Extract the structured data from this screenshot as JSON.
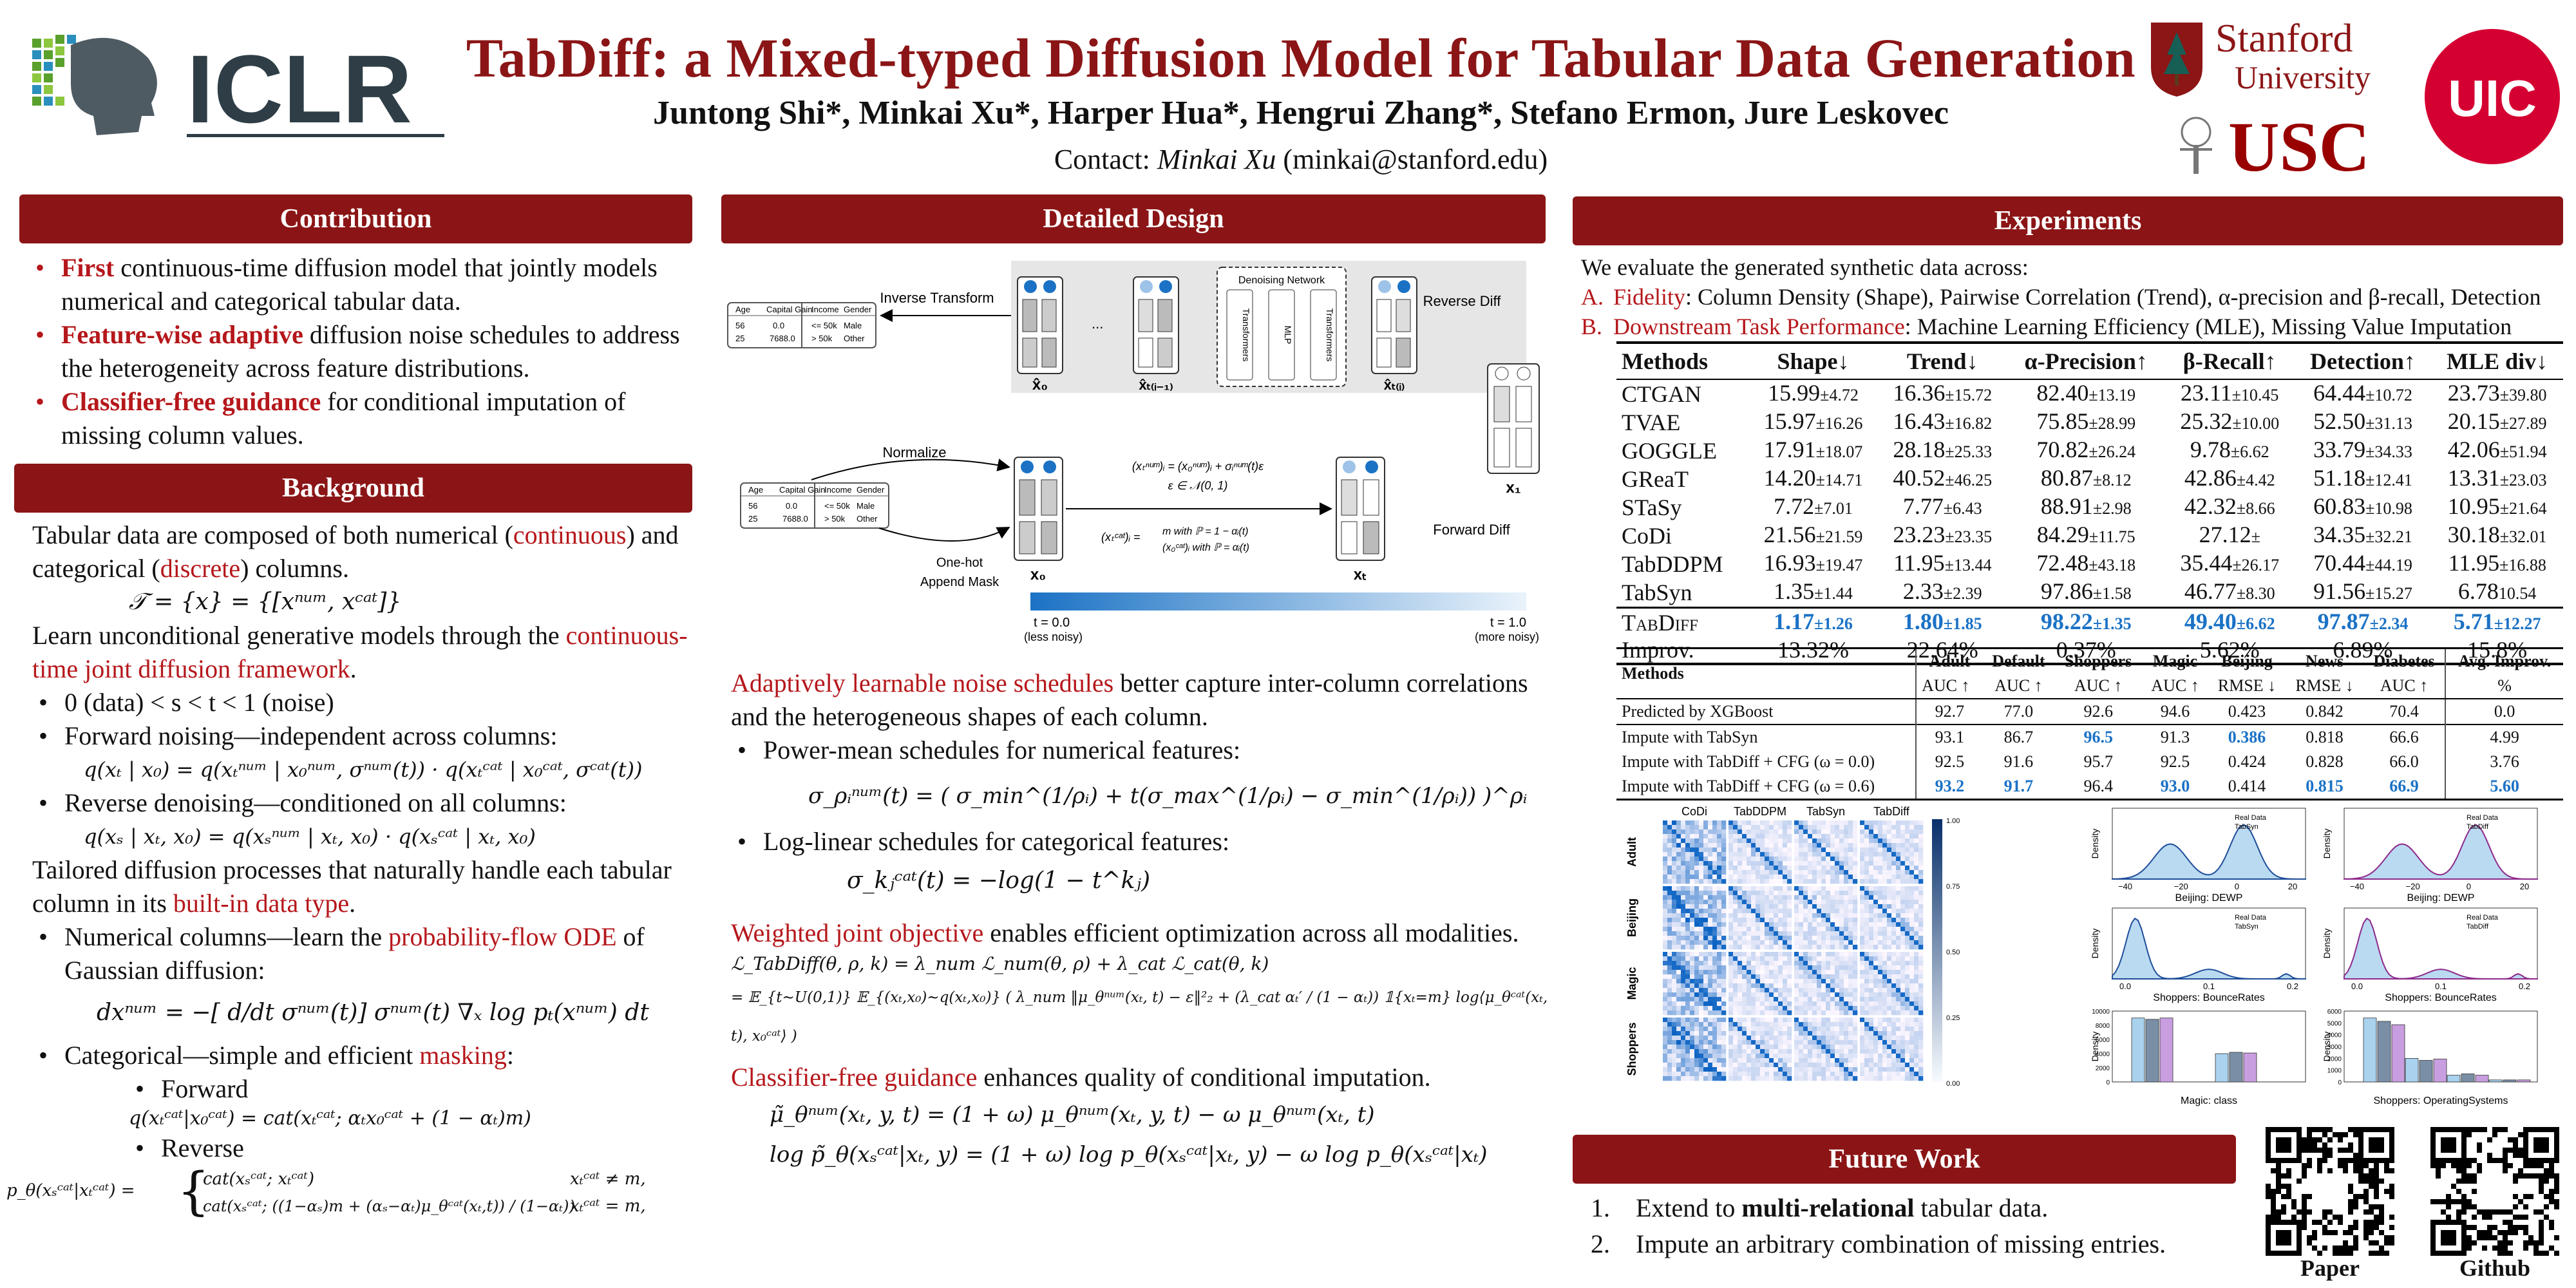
{
  "header": {
    "title": "TabDiff: a Mixed-typed Diffusion Model for Tabular Data Generation",
    "authors": "Juntong Shi*, Minkai Xu*, Harper Hua*, Hengrui Zhang*, Stefano Ermon, Jure Leskovec",
    "contact_label": "Contact: ",
    "contact_name": "Minkai Xu",
    "contact_email": " (minkai@stanford.edu)"
  },
  "logos": {
    "iclr": "ICLR",
    "stanford_1": "Stanford",
    "stanford_2": "University",
    "usc": "USC",
    "uic": "UIC"
  },
  "contribution": {
    "header": "Contribution",
    "items": [
      {
        "bold": "First",
        "rest": " continuous-time diffusion model that jointly models numerical and categorical tabular data."
      },
      {
        "bold": "Feature-wise adaptive",
        "rest": " diffusion noise schedules to address the heterogeneity across feature distributions."
      },
      {
        "bold": "Classifier-free guidance",
        "rest": " for conditional imputation of missing column values."
      }
    ]
  },
  "background": {
    "header": "Background",
    "p1_a": "Tabular data are composed of both numerical (",
    "p1_b": "continuous",
    "p1_c": ") and categorical (",
    "p1_d": "discrete",
    "p1_e": ") columns.",
    "eq_set": "𝒯 = {x} = {[xⁿᵘᵐ, xᶜᵃᵗ]}",
    "p2_a": "Learn unconditional generative models through the ",
    "p2_b": "continuous-time joint diffusion framework",
    "p2_c": ".",
    "b1": "0 (data) < s < t < 1 (noise)",
    "b2": "Forward noising—independent across columns:",
    "eq_fwd": "q(xₜ | x₀) = q(xₜⁿᵘᵐ | x₀ⁿᵘᵐ, σⁿᵘᵐ(t)) · q(xₜᶜᵃᵗ | x₀ᶜᵃᵗ, σᶜᵃᵗ(t))",
    "b3": "Reverse denoising—conditioned on all columns:",
    "eq_rev": "q(xₛ | xₜ, x₀) = q(xₛⁿᵘᵐ | xₜ, x₀) · q(xₛᶜᵃᵗ | xₜ, x₀)",
    "p3_a": "Tailored diffusion processes that naturally handle each tabular column in its ",
    "p3_b": "built-in data type",
    "p3_c": ".",
    "b4_a": "Numerical columns—learn the ",
    "b4_b": "probability-flow ODE",
    "b4_c": " of Gaussian diffusion:",
    "eq_ode": "dxⁿᵘᵐ = −[ d/dt σⁿᵘᵐ(t)] σⁿᵘᵐ(t) ∇ₓ log pₜ(xⁿᵘᵐ) dt",
    "b5_a": "Categorical—simple and efficient ",
    "b5_b": "masking",
    "b5_c": ":",
    "sub1": "Forward",
    "eq_cat_fwd": "q(xₜᶜᵃᵗ|x₀ᶜᵃᵗ) = cat(xₜᶜᵃᵗ; αₜx₀ᶜᵃᵗ + (1 − αₜ)m)",
    "sub2": "Reverse",
    "eq_cat_rev_lhs": "p_θ(xₛᶜᵃᵗ|xₜᶜᵃᵗ) =",
    "eq_cat_rev_1": "cat(xₛᶜᵃᵗ; xₜᶜᵃᵗ)",
    "eq_cat_rev_1c": "xₜᶜᵃᵗ ≠ m,",
    "eq_cat_rev_2": "cat(xₛᶜᵃᵗ; ((1−αₛ)m + (αₛ−αₜ)μ_θᶜᵃᵗ(xₜ,t)) / (1−αₜ))",
    "eq_cat_rev_2c": "xₜᶜᵃᵗ = m,"
  },
  "design": {
    "header": "Detailed Design",
    "diagram": {
      "inverse_transform": "Inverse Transform",
      "denoising_network": "Denoising Network",
      "transformers": "Transformers",
      "mlp": "MLP",
      "reverse_diff": "Reverse Diff",
      "forward_diff": "Forward Diff",
      "normalize": "Normalize",
      "one_hot": "One-hot",
      "append_mask": "Append Mask",
      "t0": "t = 0.0",
      "t0_note": "(less noisy)",
      "t1": "t = 1.0",
      "t1_note": "(more noisy)",
      "col_age": "Age",
      "col_gain": "Capital Gain",
      "col_income": "Income",
      "col_gender": "Gender",
      "r1": [
        "56",
        "0.0",
        "<= 50k",
        "Male"
      ],
      "r2": [
        "25",
        "7688.0",
        "> 50k",
        "Other"
      ],
      "fwd_num": "(xₜⁿᵘᵐ)ᵢ = (x₀ⁿᵘᵐ)ᵢ + σᵢⁿᵘᵐ(t)ε",
      "fwd_eps": "ε ∈ 𝒩(0, 1)",
      "fwd_cat_lhs": "(xₜᶜᵃᵗ)ᵢ =",
      "fwd_cat_1": "m    with ℙ = 1 − αᵢ(t)",
      "fwd_cat_2": "(x₀ᶜᵃᵗ)ᵢ  with ℙ = αᵢ(t)",
      "lbl_x0hat": "x̂₀",
      "lbl_xti1": "x̂ₜ₍ᵢ₋₁₎",
      "lbl_xti": "x̂ₜ₍ᵢ₎",
      "lbl_x1": "x₁",
      "lbl_x0": "x₀",
      "lbl_xt": "xₜ",
      "mask_m": "m",
      "dots": "..."
    },
    "p1_a": "Adaptively learnable noise schedules",
    "p1_b": " better capture inter-column correlations and the heterogeneous shapes of each column.",
    "b1": "Power-mean schedules for numerical features:",
    "eq_pm": "σ_ρᵢⁿᵘᵐ(t) = ( σ_min^(1/ρᵢ) + t(σ_max^(1/ρᵢ) − σ_min^(1/ρᵢ)) )^ρᵢ",
    "b2": "Log-linear schedules for categorical features:",
    "eq_ll": "σ_kⱼᶜᵃᵗ(t) = −log(1 − t^kⱼ)",
    "p2_a": "Weighted joint objective",
    "p2_b": " enables efficient optimization across all modalities.",
    "eq_obj1": "ℒ_TabDiff(θ, ρ, k) = λ_num ℒ_num(θ, ρ) + λ_cat ℒ_cat(θ, k)",
    "eq_obj2": "= 𝔼_{t∼U(0,1)} 𝔼_{(xₜ,x₀)∼q(xₜ,x₀)} ( λ_num ‖μ_θⁿᵘᵐ(xₜ, t) − ε‖²₂ + (λ_cat αₜ′ / (1 − αₜ)) 𝟙{xₜ=m} log⟨μ_θᶜᵃᵗ(xₜ, t), x₀ᶜᵃᵗ⟩ )",
    "p3_a": "Classifier-free guidance",
    "p3_b": " enhances quality of conditional imputation.",
    "eq_cfg1": "μ̃_θⁿᵘᵐ(xₜ, y, t) = (1 + ω) μ_θⁿᵘᵐ(xₜ, y, t) − ω μ_θⁿᵘᵐ(xₜ, t)",
    "eq_cfg2": "log p̃_θ(xₛᶜᵃᵗ|xₜ, y) = (1 + ω) log p_θ(xₛᶜᵃᵗ|xₜ, y) − ω log p_θ(xₛᶜᵃᵗ|xₜ)"
  },
  "experiments": {
    "header": "Experiments",
    "intro": "We evaluate the generated synthetic data across:",
    "itemA_letter": "A.",
    "itemA_red": "Fidelity",
    "itemA_rest": ":  Column Density (Shape), Pairwise Correlation (Trend), α-precision and β-recall, Detection",
    "itemB_letter": "B.",
    "itemB_red": "Downstream Task Performance",
    "itemB_rest": ": Machine Learning Efficiency (MLE), Missing Value Imputation",
    "table1": {
      "headers": [
        "Methods",
        "Shape↓",
        "Trend↓",
        "α-Precision↑",
        "β-Recall↑",
        "Detection↑",
        "MLE div↓"
      ],
      "rows": [
        [
          "CTGAN",
          "15.99",
          "±4.72",
          "16.36",
          "±15.72",
          "82.40",
          "±13.19",
          "23.11",
          "±10.45",
          "64.44",
          "±10.72",
          "23.73",
          "±39.80"
        ],
        [
          "TVAE",
          "15.97",
          "±16.26",
          "16.43",
          "±16.82",
          "75.85",
          "±28.99",
          "25.32",
          "±10.00",
          "52.50",
          "±31.13",
          "20.15",
          "±27.89"
        ],
        [
          "GOGGLE",
          "17.91",
          "±18.07",
          "28.18",
          "±25.33",
          "70.82",
          "±26.24",
          "9.78",
          "±6.62",
          "33.79",
          "±34.33",
          "42.06",
          "±51.94"
        ],
        [
          "GReaT",
          "14.20",
          "±14.71",
          "40.52",
          "±46.25",
          "80.87",
          "±8.12",
          "42.86",
          "±4.42",
          "51.18",
          "±12.41",
          "13.31",
          "±23.03"
        ],
        [
          "STaSy",
          "7.72",
          "±7.01",
          "7.77",
          "±6.43",
          "88.91",
          "±2.98",
          "42.32",
          "±8.66",
          "60.83",
          "±10.98",
          "10.95",
          "±21.64"
        ],
        [
          "CoDi",
          "21.56",
          "±21.59",
          "23.23",
          "±23.35",
          "84.29",
          "±11.75",
          "27.12",
          "±",
          "34.35",
          "±32.21",
          "30.18",
          "±32.01"
        ],
        [
          "TabDDPM",
          "16.93",
          "±19.47",
          "11.95",
          "±13.44",
          "72.48",
          "±43.18",
          "35.44",
          "±26.17",
          "70.44",
          "±44.19",
          "11.95",
          "±16.88"
        ],
        [
          "TabSyn",
          "1.35",
          "±1.44",
          "2.33",
          "±2.39",
          "97.86",
          "±1.58",
          "46.77",
          "±8.30",
          "91.56",
          "±15.27",
          "6.78",
          "10.54"
        ]
      ],
      "tabdiff": [
        "TabDiff",
        "1.17",
        "±1.26",
        "1.80",
        "±1.85",
        "98.22",
        "±1.35",
        "49.40",
        "±6.62",
        "97.87",
        "±2.34",
        "5.71",
        "±12.27"
      ],
      "improv": [
        "Improv.",
        "13.32%",
        "22.64%",
        "0.37%",
        "5.62%",
        "6.89%",
        "15.8%"
      ]
    },
    "table2": {
      "methods": "Methods",
      "cols": [
        "Adult",
        "Default",
        "Shoppers",
        "Magic",
        "Beijing",
        "News",
        "Diabetes",
        "Avg. Improv."
      ],
      "metrics": [
        "AUC ↑",
        "AUC ↑",
        "AUC ↑",
        "AUC ↑",
        "RMSE ↓",
        "RMSE ↓",
        "AUC ↑",
        "%"
      ],
      "xgb": [
        "Predicted by XGBoost",
        "92.7",
        "77.0",
        "92.6",
        "94.6",
        "0.423",
        "0.842",
        "70.4",
        "0.0"
      ],
      "rows": [
        [
          "Impute with TabSyn",
          "93.1",
          "86.7",
          "96.5",
          "91.3",
          "0.386",
          "0.818",
          "66.6",
          "4.99"
        ],
        [
          "Impute with TabDiff + CFG  (ω = 0.0)",
          "92.5",
          "91.6",
          "95.7",
          "92.5",
          "0.424",
          "0.828",
          "66.0",
          "3.76"
        ],
        [
          "Impute with TabDiff + CFG  (ω = 0.6)",
          "93.2",
          "91.7",
          "96.4",
          "93.0",
          "0.414",
          "0.815",
          "66.9",
          "5.60"
        ]
      ]
    },
    "heatmap": {
      "cols": [
        "CoDi",
        "TabDDPM",
        "TabSyn",
        "TabDiff"
      ],
      "rows": [
        "Adult",
        "Beijing",
        "Magic",
        "Shoppers"
      ],
      "cbar_ticks": [
        "1.00",
        "0.75",
        "0.50",
        "0.25",
        "0.00"
      ]
    },
    "plots": {
      "p1_title": "Beijing: DEWP",
      "p2_title": "Beijing: DEWP",
      "p3_title": "Shoppers: BounceRates",
      "p4_title": "Shoppers: BounceRates",
      "p5_title": "Magic: class",
      "p6_title": "Shoppers: OperatingSystems",
      "ylabel": "Density",
      "leg_real": "Real Data",
      "leg_tabsyn": "TabSyn",
      "leg_tabdiff": "TabDiff",
      "xt1": [
        "−40",
        "−20",
        "0",
        "20"
      ],
      "xt3": [
        "0.0",
        "0.1",
        "0.2"
      ],
      "yt5": [
        "0",
        "2000",
        "4000",
        "6000",
        "8000",
        "10000"
      ],
      "yt6": [
        "0",
        "1000",
        "2000",
        "3000",
        "4000",
        "5000",
        "6000"
      ]
    }
  },
  "future": {
    "header": "Future Work",
    "items": [
      {
        "n": "1.",
        "a": "Extend to ",
        "b": "multi-relational",
        "c": " tabular data."
      },
      {
        "n": "2.",
        "a": "Impute an arbitrary combination of missing entries.",
        "b": "",
        "c": ""
      }
    ]
  },
  "qr": {
    "paper": "Paper",
    "github": "Github"
  },
  "colors": {
    "brand": "#8b1516",
    "accent_red": "#b5171b",
    "accent_blue": "#1b72c5"
  }
}
